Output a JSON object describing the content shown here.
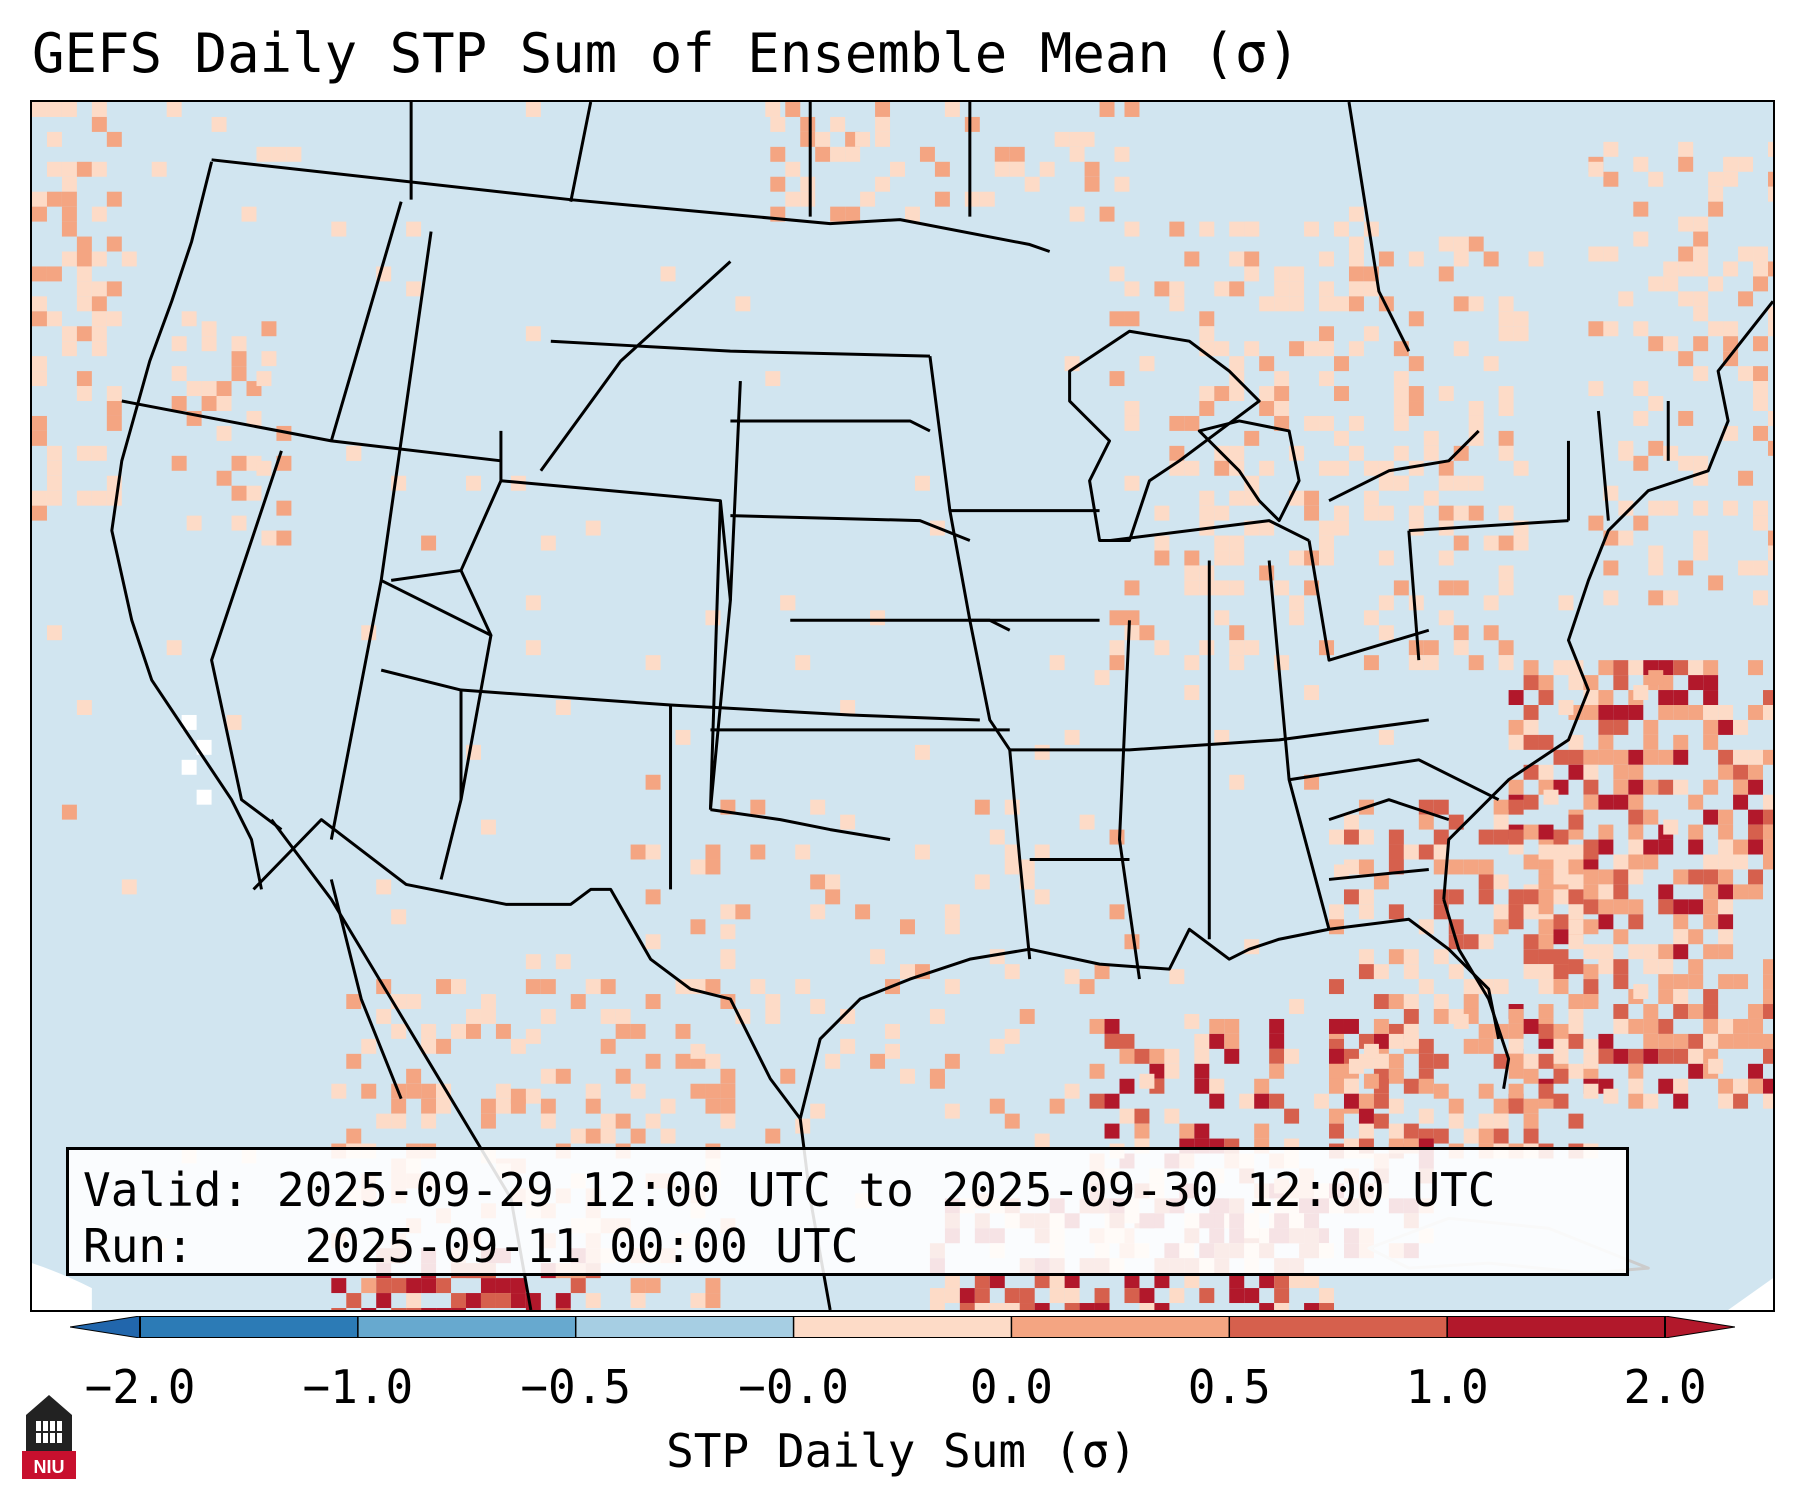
{
  "title": "GEFS Daily STP Sum of Ensemble Mean (σ)",
  "info": {
    "valid_label": "Valid:",
    "valid_text": "2025-09-29 12:00 UTC to 2025-09-30 12:00 UTC",
    "run_label": "Run:",
    "run_text": "2025-09-11 00:00 UTC"
  },
  "colorbar": {
    "label": "STP Daily Sum (σ)",
    "ticks": [
      "−2.0",
      "−1.0",
      "−0.5",
      "−0.0",
      "0.0",
      "0.5",
      "1.0",
      "2.0"
    ],
    "colors": [
      "#2c7bb6",
      "#67a9cf",
      "#a6cee3",
      "#d1e5f0",
      "#fddbc7",
      "#f4a582",
      "#d6604d",
      "#b2182b"
    ],
    "under_color": "#2166ac",
    "over_color": "#b2182b"
  },
  "map": {
    "background_color": "#d1e5f0",
    "region": "CONUS",
    "layers": [
      "state borders",
      "country borders",
      "coastlines"
    ]
  },
  "logo": {
    "text": "NIU",
    "color": "#c8102e"
  }
}
